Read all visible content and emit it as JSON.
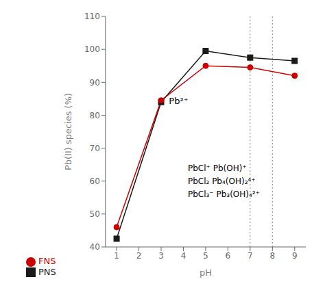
{
  "chart_data": {
    "type": "line",
    "x": [
      1,
      3,
      5,
      7,
      9
    ],
    "series": [
      {
        "name": "PNS",
        "color": "#1a1a1a",
        "marker": "square",
        "values": [
          42.5,
          84.0,
          99.5,
          97.5,
          96.5
        ]
      },
      {
        "name": "FNS",
        "color": "#cc0000",
        "marker": "circle",
        "values": [
          46.0,
          84.5,
          95.0,
          94.5,
          92.0
        ]
      }
    ],
    "xlabel": "pH",
    "ylabel": "Pb(II) species (%)",
    "xlim": [
      0.5,
      9.5
    ],
    "xticks": [
      1,
      2,
      3,
      4,
      5,
      6,
      7,
      8,
      9
    ],
    "ylim": [
      40,
      110
    ],
    "yticks": [
      40,
      50,
      60,
      70,
      80,
      90,
      100,
      110
    ],
    "vlines": [
      7,
      8
    ],
    "line_style": "dotted",
    "annotations": [
      {
        "text": "Pb²⁺",
        "x": 3.35,
        "y": 84.5
      },
      {
        "text": "PbCl⁺ Pb(OH)⁺\nPbCl₂ Pb₄(OH)₂⁴⁺\nPbCl₃⁻ Pb₃(OH)₄²⁺",
        "x": 4.2,
        "y": 65
      }
    ],
    "grid": false,
    "legend": "bottom"
  }
}
